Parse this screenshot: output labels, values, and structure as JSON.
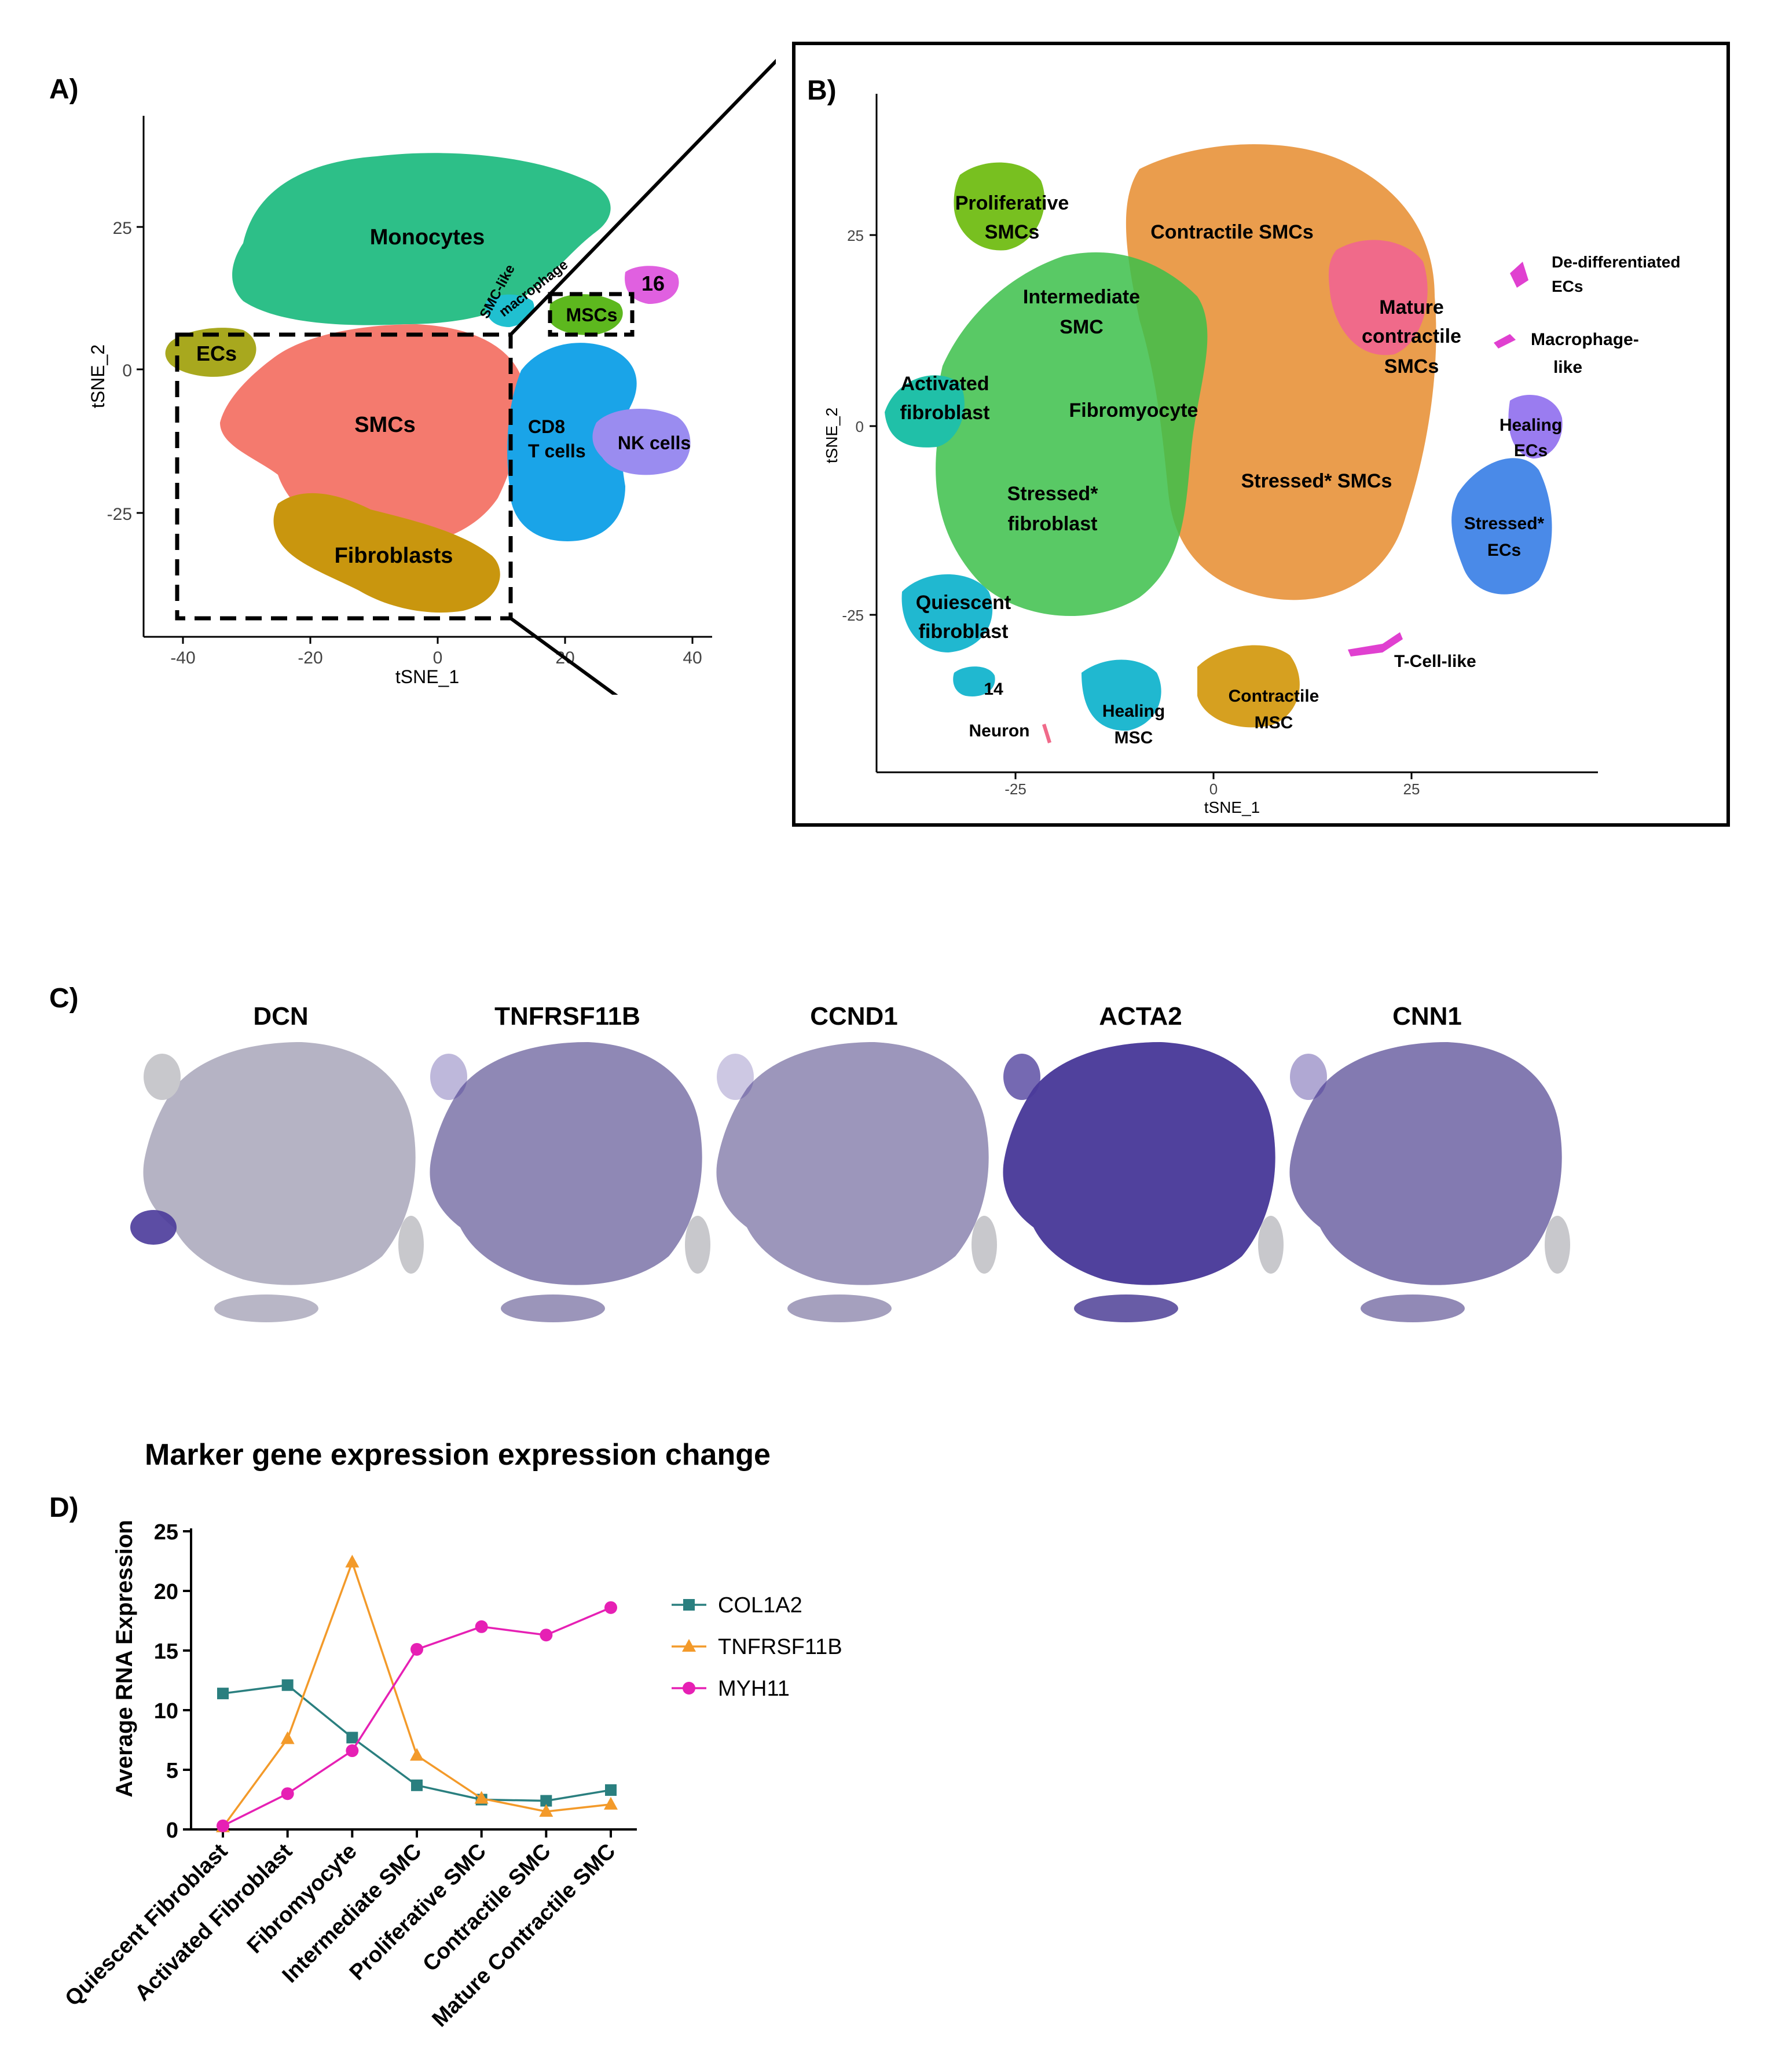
{
  "panel_a": {
    "label": "A)",
    "xlabel": "tSNE_1",
    "ylabel": "tSNE_2",
    "xticks": [
      "-40",
      "-20",
      "0",
      "20",
      "40"
    ],
    "yticks": [
      "25",
      "0",
      "-25"
    ],
    "clusters": {
      "monocytes": "Monocytes",
      "smc_like": "SMC-like",
      "macrophage": "macrophage",
      "c16": "16",
      "mscs": "MSCs",
      "ecs": "ECs",
      "smcs": "SMCs",
      "cd8": "CD8",
      "tcells": "T cells",
      "nk": "NK cells",
      "fibroblasts": "Fibroblasts"
    },
    "colors": {
      "monocytes": "#2dbf88",
      "ecs": "#a8a81e",
      "smcs": "#f47a6e",
      "tcells": "#1aa4e8",
      "nk": "#9a8cf0",
      "fibro": "#c9960e",
      "mscs": "#5db81e",
      "c16": "#e060e0"
    }
  },
  "panel_b": {
    "label": "B)",
    "xlabel": "tSNE_1",
    "ylabel": "tSNE_2",
    "xticks": [
      "-25",
      "0",
      "25"
    ],
    "yticks": [
      "25",
      "0",
      "-25"
    ],
    "clusters": {
      "prolif1": "Proliferative",
      "prolif2": "SMCs",
      "contractile": "Contractile SMCs",
      "dediff1": "De-differentiated",
      "dediff2": "ECs",
      "inter1": "Intermediate",
      "inter2": "SMC",
      "mature1": "Mature",
      "mature2": "contractile",
      "mature3": "SMCs",
      "macro1": "Macrophage-",
      "macro2": "like",
      "act1": "Activated",
      "act2": "fibroblast",
      "fibromyocyte": "Fibromyocyte",
      "heal_ec1": "Healing",
      "heal_ec2": "ECs",
      "stressed_smc": "Stressed* SMCs",
      "sf1": "Stressed*",
      "sf2": "fibroblast",
      "sec1": "Stressed*",
      "sec2": "ECs",
      "q1": "Quiescent",
      "q2": "fibroblast",
      "tcell": "T-Cell-like",
      "c14": "14",
      "cmsc1": "Contractile",
      "cmsc2": "MSC",
      "hmsc1": "Healing",
      "hmsc2": "MSC",
      "neuron": "Neuron"
    },
    "colors": {
      "orange": "#e8923a",
      "green": "#3cbf4a",
      "teal": "#20c0a8",
      "gold": "#d6a020",
      "blue": "#4a8ae8",
      "purple": "#9a7cf0",
      "pink": "#f06a8a",
      "magenta": "#e040d0",
      "cyan": "#20b8d0",
      "lime": "#78c020"
    }
  },
  "panel_c": {
    "label": "C)",
    "genes": [
      "DCN",
      "TNFRSF11B",
      "CCND1",
      "ACTA2",
      "CNN1"
    ],
    "colors": {
      "low": "#c8c8cc",
      "high": "#4a3a9a"
    }
  },
  "panel_d": {
    "label": "D)",
    "title": "Marker gene expression expression change"
  },
  "chart_data": {
    "type": "line",
    "title": "Marker gene expression expression change",
    "xlabel": "",
    "ylabel": "Average RNA Expression",
    "ylim": [
      0,
      25
    ],
    "yticks": [
      "0",
      "5",
      "10",
      "15",
      "20",
      "25"
    ],
    "categories": [
      "Quiescent Fibroblast",
      "Activated Fibroblast",
      "Fibromyocyte",
      "Intermediate SMC",
      "Proliferative SMC",
      "Contractile SMC",
      "Mature Contractile SMC"
    ],
    "series": [
      {
        "name": "COL1A2",
        "marker": "square",
        "color": "#2a7f7f",
        "values": [
          11.4,
          12.1,
          7.7,
          3.7,
          2.5,
          2.4,
          3.3
        ]
      },
      {
        "name": "TNFRSF11B",
        "marker": "triangle",
        "color": "#f39a2a",
        "values": [
          0.2,
          7.6,
          22.4,
          6.2,
          2.6,
          1.5,
          2.1
        ]
      },
      {
        "name": "MYH11",
        "marker": "circle",
        "color": "#e620b4",
        "values": [
          0.3,
          3.0,
          6.6,
          15.1,
          17.0,
          16.3,
          18.6
        ]
      }
    ],
    "legend": "right"
  }
}
